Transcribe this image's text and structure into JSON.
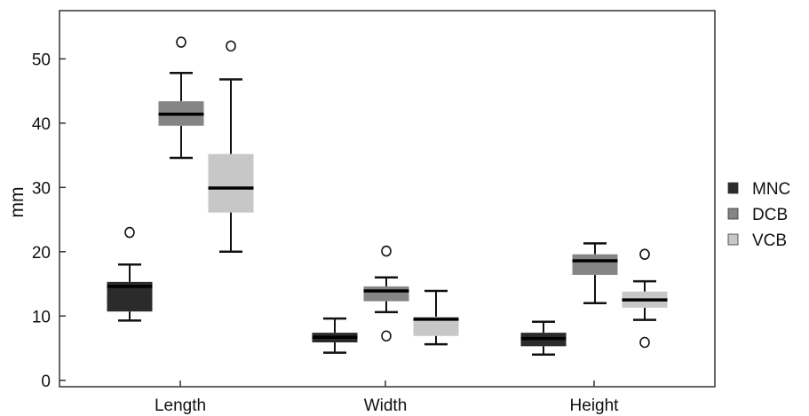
{
  "chart_data": {
    "type": "boxplot",
    "title": "",
    "xlabel": "",
    "ylabel": "mm",
    "categories": [
      "Length",
      "Width",
      "Height"
    ],
    "y_ticks": [
      "0",
      "10",
      "20",
      "30",
      "40",
      "50"
    ],
    "ylim": [
      -1,
      57.5
    ],
    "grid": false,
    "legend_position": "right",
    "series": [
      {
        "name": "MNC",
        "color": "#2b2b2b",
        "boxes": [
          {
            "whisker_low": 9.3,
            "q1": 10.7,
            "median": 14.6,
            "q3": 15.3,
            "whisker_high": 18.0,
            "outliers": [
              23.0
            ]
          },
          {
            "whisker_low": 4.3,
            "q1": 5.9,
            "median": 6.7,
            "q3": 7.4,
            "whisker_high": 9.6,
            "outliers": []
          },
          {
            "whisker_low": 4.0,
            "q1": 5.3,
            "median": 6.5,
            "q3": 7.4,
            "whisker_high": 9.1,
            "outliers": []
          }
        ]
      },
      {
        "name": "DCB",
        "color": "#858585",
        "boxes": [
          {
            "whisker_low": 34.6,
            "q1": 39.6,
            "median": 41.4,
            "q3": 43.4,
            "whisker_high": 47.8,
            "outliers": [
              52.6
            ]
          },
          {
            "whisker_low": 10.6,
            "q1": 12.3,
            "median": 13.9,
            "q3": 14.6,
            "whisker_high": 16.0,
            "outliers": [
              20.1,
              6.9
            ]
          },
          {
            "whisker_low": 12.0,
            "q1": 16.4,
            "median": 18.6,
            "q3": 19.6,
            "whisker_high": 21.3,
            "outliers": []
          }
        ]
      },
      {
        "name": "VCB",
        "color": "#c7c7c7",
        "boxes": [
          {
            "whisker_low": 20.0,
            "q1": 26.1,
            "median": 29.9,
            "q3": 35.2,
            "whisker_high": 46.8,
            "outliers": [
              52.0
            ]
          },
          {
            "whisker_low": 5.6,
            "q1": 6.9,
            "median": 9.5,
            "q3": 9.9,
            "whisker_high": 13.9,
            "outliers": []
          },
          {
            "whisker_low": 9.4,
            "q1": 11.3,
            "median": 12.5,
            "q3": 13.8,
            "whisker_high": 15.4,
            "outliers": [
              19.6,
              5.9
            ]
          }
        ]
      }
    ]
  }
}
